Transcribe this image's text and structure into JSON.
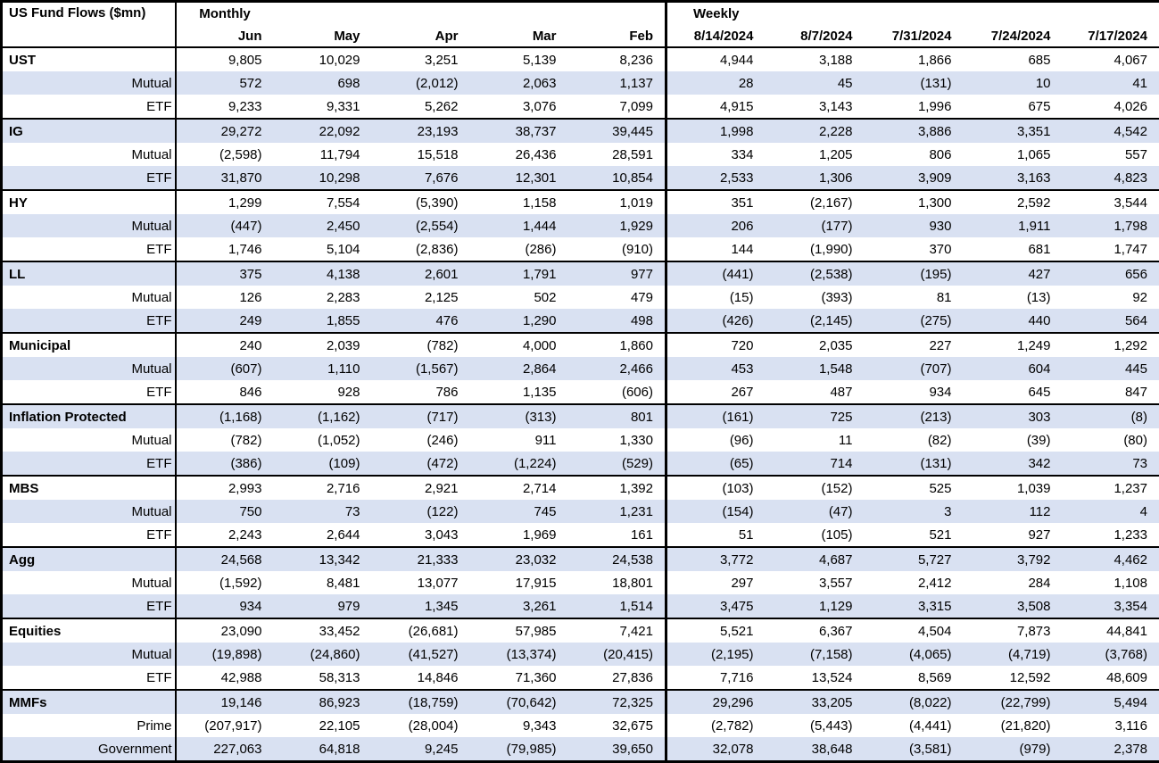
{
  "title": "US Fund Flows ($mn)",
  "sections": {
    "monthly": "Monthly",
    "weekly": "Weekly"
  },
  "columns": {
    "monthly": [
      "Jun",
      "May",
      "Apr",
      "Mar",
      "Feb"
    ],
    "weekly": [
      "8/14/2024",
      "8/7/2024",
      "7/31/2024",
      "7/24/2024",
      "7/17/2024"
    ]
  },
  "groups": [
    {
      "name": "UST",
      "rows": [
        {
          "label": "UST",
          "values": [
            "9,805",
            "10,029",
            "3,251",
            "5,139",
            "8,236",
            "4,944",
            "3,188",
            "1,866",
            "685",
            "4,067"
          ]
        },
        {
          "label": "Mutual",
          "values": [
            "572",
            "698",
            "(2,012)",
            "2,063",
            "1,137",
            "28",
            "45",
            "(131)",
            "10",
            "41"
          ]
        },
        {
          "label": "ETF",
          "values": [
            "9,233",
            "9,331",
            "5,262",
            "3,076",
            "7,099",
            "4,915",
            "3,143",
            "1,996",
            "675",
            "4,026"
          ]
        }
      ]
    },
    {
      "name": "IG",
      "rows": [
        {
          "label": "IG",
          "values": [
            "29,272",
            "22,092",
            "23,193",
            "38,737",
            "39,445",
            "1,998",
            "2,228",
            "3,886",
            "3,351",
            "4,542"
          ]
        },
        {
          "label": "Mutual",
          "values": [
            "(2,598)",
            "11,794",
            "15,518",
            "26,436",
            "28,591",
            "334",
            "1,205",
            "806",
            "1,065",
            "557"
          ]
        },
        {
          "label": "ETF",
          "values": [
            "31,870",
            "10,298",
            "7,676",
            "12,301",
            "10,854",
            "2,533",
            "1,306",
            "3,909",
            "3,163",
            "4,823"
          ]
        }
      ]
    },
    {
      "name": "HY",
      "rows": [
        {
          "label": "HY",
          "values": [
            "1,299",
            "7,554",
            "(5,390)",
            "1,158",
            "1,019",
            "351",
            "(2,167)",
            "1,300",
            "2,592",
            "3,544"
          ]
        },
        {
          "label": "Mutual",
          "values": [
            "(447)",
            "2,450",
            "(2,554)",
            "1,444",
            "1,929",
            "206",
            "(177)",
            "930",
            "1,911",
            "1,798"
          ]
        },
        {
          "label": "ETF",
          "values": [
            "1,746",
            "5,104",
            "(2,836)",
            "(286)",
            "(910)",
            "144",
            "(1,990)",
            "370",
            "681",
            "1,747"
          ]
        }
      ]
    },
    {
      "name": "LL",
      "rows": [
        {
          "label": "LL",
          "values": [
            "375",
            "4,138",
            "2,601",
            "1,791",
            "977",
            "(441)",
            "(2,538)",
            "(195)",
            "427",
            "656"
          ]
        },
        {
          "label": "Mutual",
          "values": [
            "126",
            "2,283",
            "2,125",
            "502",
            "479",
            "(15)",
            "(393)",
            "81",
            "(13)",
            "92"
          ]
        },
        {
          "label": "ETF",
          "values": [
            "249",
            "1,855",
            "476",
            "1,290",
            "498",
            "(426)",
            "(2,145)",
            "(275)",
            "440",
            "564"
          ]
        }
      ]
    },
    {
      "name": "Municipal",
      "rows": [
        {
          "label": "Municipal",
          "values": [
            "240",
            "2,039",
            "(782)",
            "4,000",
            "1,860",
            "720",
            "2,035",
            "227",
            "1,249",
            "1,292"
          ]
        },
        {
          "label": "Mutual",
          "values": [
            "(607)",
            "1,110",
            "(1,567)",
            "2,864",
            "2,466",
            "453",
            "1,548",
            "(707)",
            "604",
            "445"
          ]
        },
        {
          "label": "ETF",
          "values": [
            "846",
            "928",
            "786",
            "1,135",
            "(606)",
            "267",
            "487",
            "934",
            "645",
            "847"
          ]
        }
      ]
    },
    {
      "name": "Inflation Protected",
      "rows": [
        {
          "label": "Inflation Protected",
          "values": [
            "(1,168)",
            "(1,162)",
            "(717)",
            "(313)",
            "801",
            "(161)",
            "725",
            "(213)",
            "303",
            "(8)"
          ]
        },
        {
          "label": "Mutual",
          "values": [
            "(782)",
            "(1,052)",
            "(246)",
            "911",
            "1,330",
            "(96)",
            "11",
            "(82)",
            "(39)",
            "(80)"
          ]
        },
        {
          "label": "ETF",
          "values": [
            "(386)",
            "(109)",
            "(472)",
            "(1,224)",
            "(529)",
            "(65)",
            "714",
            "(131)",
            "342",
            "73"
          ]
        }
      ]
    },
    {
      "name": "MBS",
      "rows": [
        {
          "label": "MBS",
          "values": [
            "2,993",
            "2,716",
            "2,921",
            "2,714",
            "1,392",
            "(103)",
            "(152)",
            "525",
            "1,039",
            "1,237"
          ]
        },
        {
          "label": "Mutual",
          "values": [
            "750",
            "73",
            "(122)",
            "745",
            "1,231",
            "(154)",
            "(47)",
            "3",
            "112",
            "4"
          ]
        },
        {
          "label": "ETF",
          "values": [
            "2,243",
            "2,644",
            "3,043",
            "1,969",
            "161",
            "51",
            "(105)",
            "521",
            "927",
            "1,233"
          ]
        }
      ]
    },
    {
      "name": "Agg",
      "rows": [
        {
          "label": "Agg",
          "values": [
            "24,568",
            "13,342",
            "21,333",
            "23,032",
            "24,538",
            "3,772",
            "4,687",
            "5,727",
            "3,792",
            "4,462"
          ]
        },
        {
          "label": "Mutual",
          "values": [
            "(1,592)",
            "8,481",
            "13,077",
            "17,915",
            "18,801",
            "297",
            "3,557",
            "2,412",
            "284",
            "1,108"
          ]
        },
        {
          "label": "ETF",
          "values": [
            "934",
            "979",
            "1,345",
            "3,261",
            "1,514",
            "3,475",
            "1,129",
            "3,315",
            "3,508",
            "3,354"
          ]
        }
      ]
    },
    {
      "name": "Equities",
      "rows": [
        {
          "label": "Equities",
          "values": [
            "23,090",
            "33,452",
            "(26,681)",
            "57,985",
            "7,421",
            "5,521",
            "6,367",
            "4,504",
            "7,873",
            "44,841"
          ]
        },
        {
          "label": "Mutual",
          "values": [
            "(19,898)",
            "(24,860)",
            "(41,527)",
            "(13,374)",
            "(20,415)",
            "(2,195)",
            "(7,158)",
            "(4,065)",
            "(4,719)",
            "(3,768)"
          ]
        },
        {
          "label": "ETF",
          "values": [
            "42,988",
            "58,313",
            "14,846",
            "71,360",
            "27,836",
            "7,716",
            "13,524",
            "8,569",
            "12,592",
            "48,609"
          ]
        }
      ]
    },
    {
      "name": "MMFs",
      "rows": [
        {
          "label": "MMFs",
          "values": [
            "19,146",
            "86,923",
            "(18,759)",
            "(70,642)",
            "72,325",
            "29,296",
            "33,205",
            "(8,022)",
            "(22,799)",
            "5,494"
          ]
        },
        {
          "label": "Prime",
          "values": [
            "(207,917)",
            "22,105",
            "(28,004)",
            "9,343",
            "32,675",
            "(2,782)",
            "(5,443)",
            "(4,441)",
            "(21,820)",
            "3,116"
          ]
        },
        {
          "label": "Government",
          "values": [
            "227,063",
            "64,818",
            "9,245",
            "(79,985)",
            "39,650",
            "32,078",
            "38,648",
            "(3,581)",
            "(979)",
            "2,378"
          ]
        }
      ]
    }
  ],
  "colors": {
    "stripe": "#d9e1f2",
    "border": "#000000",
    "text": "#000000",
    "background": "#ffffff"
  }
}
